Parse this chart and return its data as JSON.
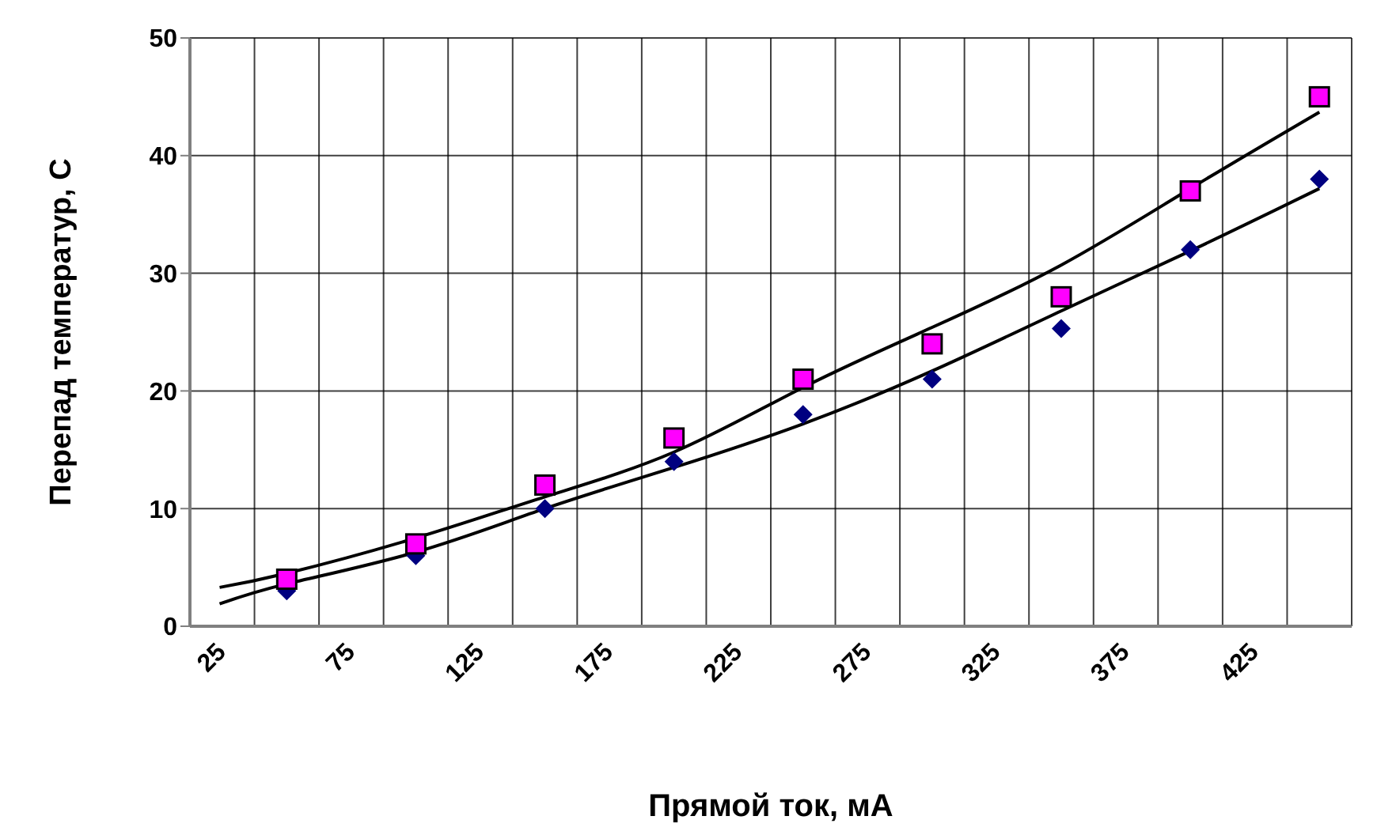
{
  "chart_data": {
    "type": "scatter",
    "xlabel": "Прямой ток, мА",
    "ylabel": "Перепад температур, С",
    "x": [
      50,
      100,
      150,
      200,
      250,
      300,
      350,
      400,
      450
    ],
    "series": [
      {
        "marker": "diamond",
        "color": "#000080",
        "values": [
          3,
          6,
          10,
          14,
          18,
          21,
          25.3,
          32,
          38
        ]
      },
      {
        "marker": "square",
        "color": "#ff00ff",
        "values": [
          4,
          7,
          12,
          16,
          21,
          24,
          28,
          37,
          45
        ]
      },
      {
        "type": "line",
        "marker": "none",
        "color": "#000000",
        "x": [
          24,
          50,
          100,
          150,
          200,
          250,
          300,
          350,
          400,
          450
        ],
        "values": [
          1.9,
          3.6,
          6.3,
          10,
          13.5,
          17.2,
          21.7,
          26.8,
          31.9,
          37.2
        ]
      },
      {
        "type": "line",
        "marker": "none",
        "color": "#000000",
        "x": [
          24,
          50,
          100,
          150,
          200,
          250,
          300,
          350,
          400,
          450
        ],
        "values": [
          3.3,
          4.5,
          7.5,
          11,
          14.8,
          20.3,
          25.4,
          30.7,
          37.2,
          43.7
        ]
      }
    ],
    "xlim": [
      12.5,
      462.5
    ],
    "xticks": [
      {
        "value": 12.5,
        "label": null
      },
      25,
      {
        "value": 37.5,
        "label": null
      },
      {
        "value": 62.5,
        "label": null
      },
      75,
      {
        "value": 87.5,
        "label": null
      },
      {
        "value": 112.5,
        "label": null
      },
      125,
      {
        "value": 137.5,
        "label": null
      },
      {
        "value": 162.5,
        "label": null
      },
      175,
      {
        "value": 187.5,
        "label": null
      },
      {
        "value": 212.5,
        "label": null
      },
      225,
      {
        "value": 237.5,
        "label": null
      },
      {
        "value": 262.5,
        "label": null
      },
      275,
      {
        "value": 287.5,
        "label": null
      },
      {
        "value": 312.5,
        "label": null
      },
      325,
      {
        "value": 337.5,
        "label": null
      },
      {
        "value": 362.5,
        "label": null
      },
      375,
      {
        "value": 387.5,
        "label": null
      },
      {
        "value": 412.5,
        "label": null
      },
      425,
      {
        "value": 437.5,
        "label": null
      },
      {
        "value": 462.5,
        "label": null
      }
    ],
    "ylim": [
      0,
      50
    ],
    "yticks": [
      0,
      10,
      20,
      30,
      40,
      50
    ],
    "grid": true
  }
}
